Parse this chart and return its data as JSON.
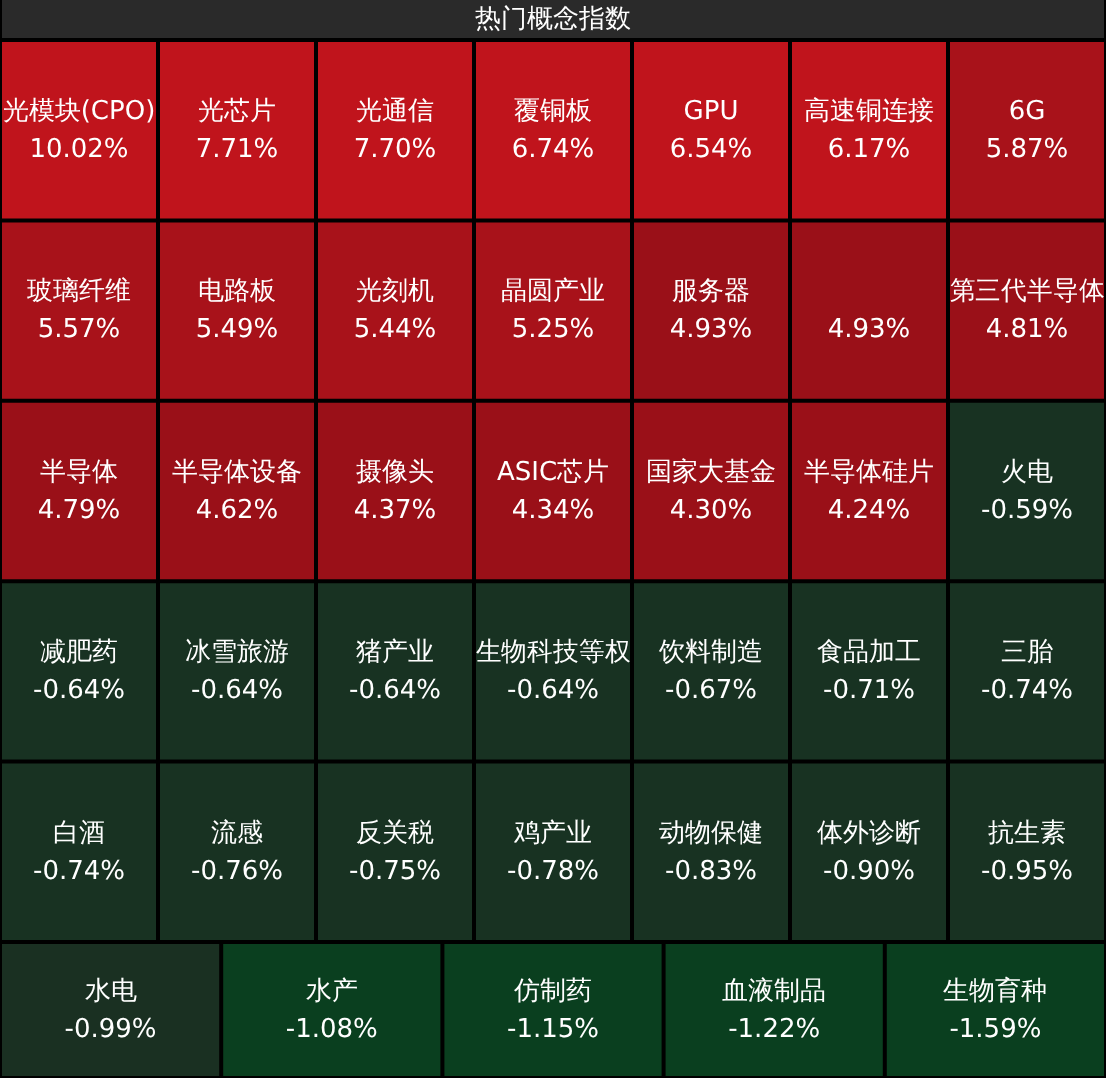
{
  "chart_data": {
    "type": "other",
    "title": "热门概念指数",
    "categories": [
      "光模块(CPO)",
      "光芯片",
      "光通信",
      "覆铜板",
      "GPU",
      "高速铜连接",
      "6G",
      "玻璃纤维",
      "电路板",
      "光刻机",
      "晶圆产业",
      "服务器",
      null,
      "第三代半导体",
      "半导体",
      "半导体设备",
      "摄像头",
      "ASIC芯片",
      "国家大基金",
      "半导体硅片",
      "火电",
      "减肥药",
      "冰雪旅游",
      "猪产业",
      "生物科技等权",
      "饮料制造",
      "食品加工",
      "三胎",
      "白酒",
      "流感",
      "反关税",
      "鸡产业",
      "动物保健",
      "体外诊断",
      "抗生素",
      "水电",
      "水产",
      "仿制药",
      "血液制品",
      "生物育种"
    ],
    "values": [
      10.02,
      7.71,
      7.7,
      6.74,
      6.54,
      6.17,
      5.87,
      5.57,
      5.49,
      5.44,
      5.25,
      4.93,
      4.93,
      4.81,
      4.79,
      4.62,
      4.37,
      4.34,
      4.3,
      4.24,
      -0.59,
      -0.64,
      -0.64,
      -0.64,
      -0.64,
      -0.67,
      -0.71,
      -0.74,
      -0.74,
      -0.76,
      -0.75,
      -0.78,
      -0.83,
      -0.9,
      -0.95,
      -0.99,
      -1.08,
      -1.15,
      -1.22,
      -1.59
    ],
    "value_labels": [
      "10.02%",
      "7.71%",
      "7.70%",
      "6.74%",
      "6.54%",
      "6.17%",
      "5.87%",
      "5.57%",
      "5.49%",
      "5.44%",
      "5.25%",
      "4.93%",
      "4.93%",
      "4.81%",
      "4.79%",
      "4.62%",
      "4.37%",
      "4.34%",
      "4.30%",
      "4.24%",
      "-0.59%",
      "-0.64%",
      "-0.64%",
      "-0.64%",
      "-0.64%",
      "-0.67%",
      "-0.71%",
      "-0.74%",
      "-0.74%",
      "-0.76%",
      "-0.75%",
      "-0.78%",
      "-0.83%",
      "-0.90%",
      "-0.95%",
      "-0.99%",
      "-1.08%",
      "-1.15%",
      "-1.22%",
      "-1.59%"
    ]
  }
}
